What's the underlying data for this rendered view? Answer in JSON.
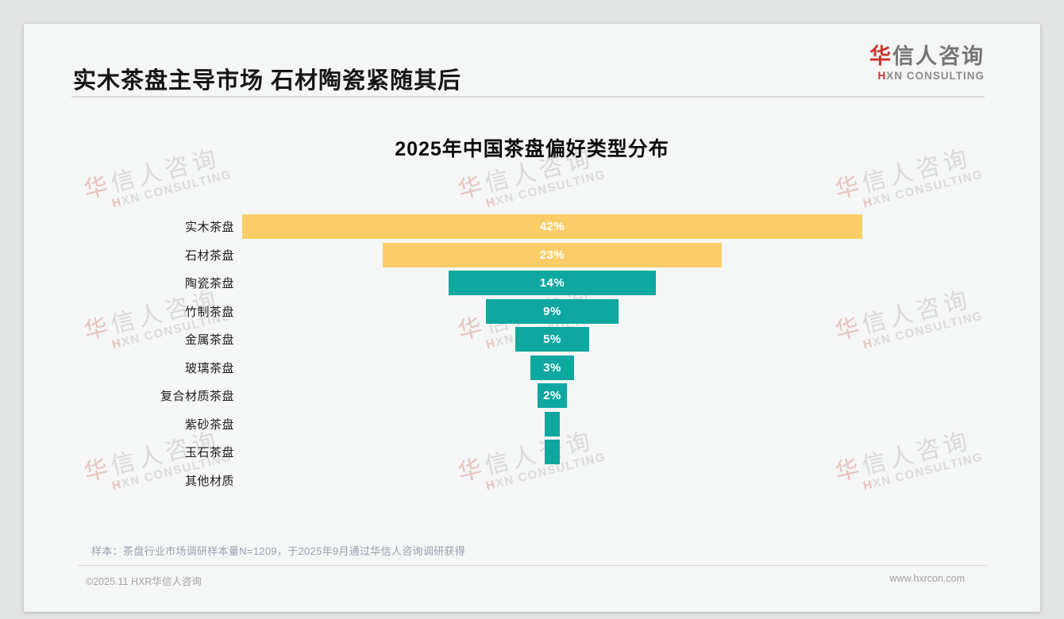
{
  "header": {
    "title": "实木茶盘主导市场 石材陶瓷紧随其后",
    "logo": {
      "zh_first": "华",
      "zh_rest": "信人咨询",
      "en_first": "H",
      "en_rest": "XN CONSULTING"
    }
  },
  "chart_data": {
    "type": "bar",
    "title": "2025年中国茶盘偏好类型分布",
    "orientation": "horizontal-centered-funnel",
    "categories": [
      "实木茶盘",
      "石材茶盘",
      "陶瓷茶盘",
      "竹制茶盘",
      "金属茶盘",
      "玻璃茶盘",
      "复合材质茶盘",
      "紫砂茶盘",
      "玉石茶盘",
      "其他材质"
    ],
    "values": [
      42,
      23,
      14,
      9,
      5,
      3,
      2,
      1,
      1,
      0
    ],
    "bar_labels": [
      "42%",
      "23%",
      "14%",
      "9%",
      "5%",
      "3%",
      "2%",
      "",
      "",
      ""
    ],
    "bar_colors": [
      "#facd69",
      "#facd69",
      "#0fa8a0",
      "#0fa8a0",
      "#0fa8a0",
      "#0fa8a0",
      "#0fa8a0",
      "#0fa8a0",
      "#0fa8a0",
      "#0fa8a0"
    ],
    "unit": "%",
    "xlim": [
      0,
      42
    ],
    "grid": false,
    "legend": "none"
  },
  "watermark": {
    "line1": "华信人咨询",
    "line2": "HXN CONSULTING"
  },
  "footnote": "样本：茶盘行业市场调研样本量N=1209，于2025年9月通过华信人咨询调研获得",
  "footer": {
    "left": "©2025.11 HXR华信人咨询",
    "right": "www.hxrcon.com"
  },
  "colors": {
    "accent_red": "#c9362c",
    "bar_gold": "#facd69",
    "bar_teal": "#0fa8a0",
    "card_bg": "#f5f6f6",
    "page_bg": "#e2e3e3"
  }
}
